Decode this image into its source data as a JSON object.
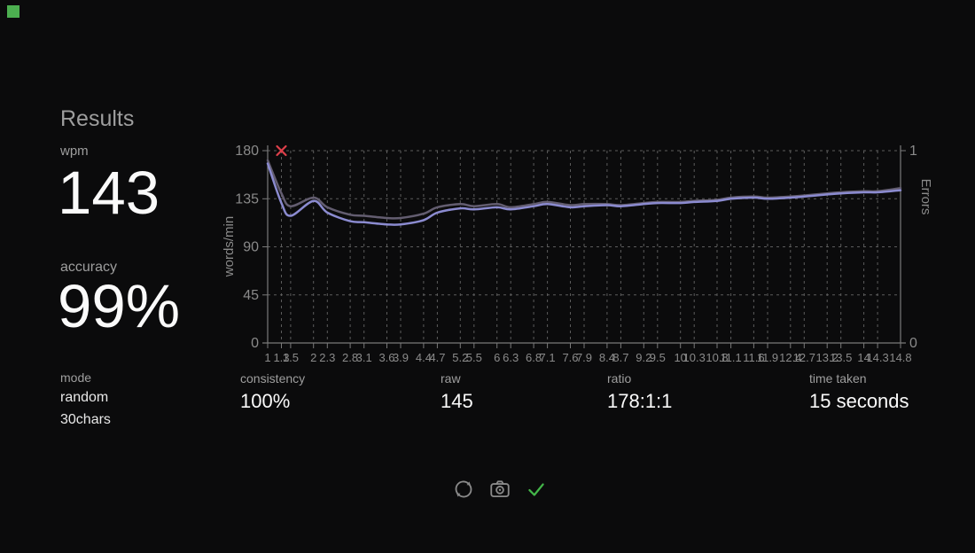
{
  "indicator": {
    "color": "#4caf50"
  },
  "results": {
    "title": "Results",
    "wpm": {
      "label": "wpm",
      "value": "143"
    },
    "accuracy": {
      "label": "accuracy",
      "value": "99%"
    },
    "mode": {
      "label": "mode",
      "line1": "random",
      "line2": "30chars"
    }
  },
  "bottom_stats": [
    {
      "label": "consistency",
      "value": "100%"
    },
    {
      "label": "raw",
      "value": "145"
    },
    {
      "label": "ratio",
      "value": "178:1:1"
    },
    {
      "label": "time taken",
      "value": "15 seconds"
    }
  ],
  "actions": [
    {
      "name": "restart-test",
      "icon": "restart-icon"
    },
    {
      "name": "screenshot",
      "icon": "camera-icon"
    },
    {
      "name": "done",
      "icon": "check-icon"
    }
  ],
  "colors": {
    "background": "#0b0b0c",
    "wpm_line": "#8b8bd0",
    "raw_line": "#635d70",
    "error_mark": "#e0404b",
    "grid": "#5c5c5c",
    "axis": "#7a7a7a",
    "chart_text": "#8a8a8a",
    "check_green": "#43b649",
    "icon_gray": "#8a8a8a"
  },
  "chart_data": {
    "type": "line",
    "x": [
      1,
      1.3,
      1.5,
      2,
      2.3,
      2.8,
      3.1,
      3.6,
      3.9,
      4.4,
      4.7,
      5.2,
      5.5,
      6,
      6.3,
      6.8,
      7.1,
      7.6,
      7.9,
      8.4,
      8.7,
      9.2,
      9.5,
      10,
      10.3,
      10.8,
      11.1,
      11.6,
      11.9,
      12.4,
      12.7,
      13.2,
      13.5,
      14,
      14.3,
      14.8
    ],
    "xlim": [
      1,
      14.8
    ],
    "series": [
      {
        "name": "wpm",
        "color": "#8b8bd0",
        "values": [
          168,
          131,
          119,
          133,
          122,
          114,
          113,
          111,
          111,
          115,
          122,
          126,
          125,
          127,
          125,
          128,
          130,
          127,
          128,
          129,
          128,
          130,
          131,
          131,
          132,
          133,
          135,
          136,
          135,
          136,
          137,
          139,
          140,
          141,
          141,
          143
        ]
      },
      {
        "name": "raw",
        "color": "#635d70",
        "values": [
          171,
          140,
          128,
          136,
          127,
          120,
          119,
          117,
          117,
          121,
          127,
          130,
          128,
          130,
          127,
          130,
          132,
          129,
          130,
          130,
          129,
          131,
          132,
          132,
          133,
          134,
          136,
          137,
          136,
          137,
          138,
          140,
          141,
          142,
          142,
          145
        ]
      }
    ],
    "errors": [
      {
        "x": 1.3,
        "count": 1
      }
    ],
    "error_color": "#e0404b",
    "left_axis": {
      "title": "words/min",
      "ticks": [
        0,
        45,
        90,
        135,
        180
      ],
      "range": [
        0,
        180
      ]
    },
    "right_axis": {
      "title": "Errors",
      "ticks": [
        0,
        1
      ],
      "range": [
        0,
        1
      ]
    },
    "grid": "dashed",
    "legend": "none"
  }
}
